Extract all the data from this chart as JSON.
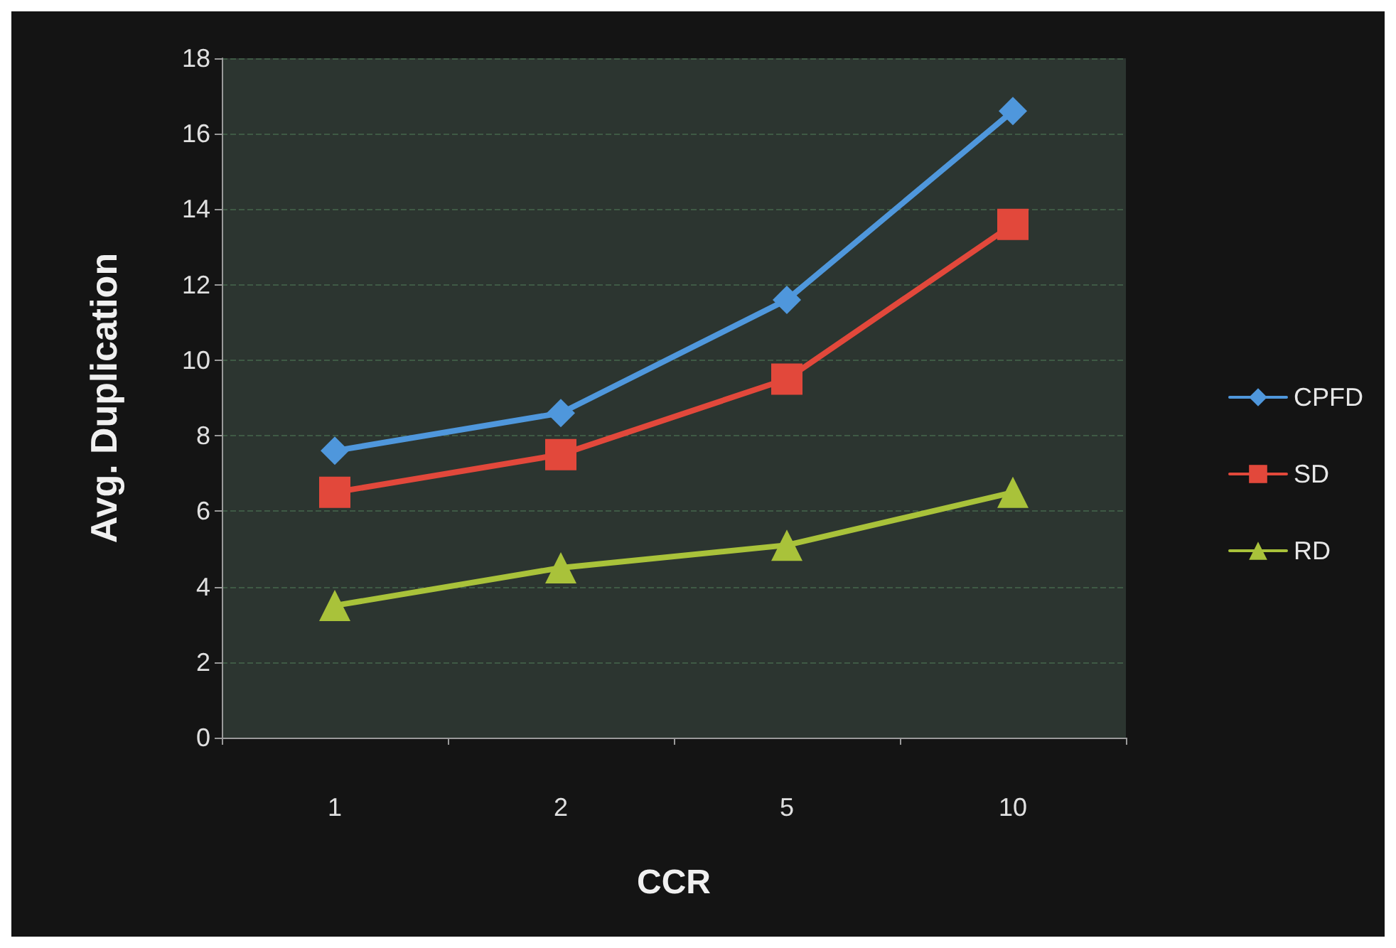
{
  "chart_data": {
    "type": "line",
    "xlabel": "CCR",
    "ylabel": "Avg. Duplication",
    "categories": [
      "1",
      "2",
      "5",
      "10"
    ],
    "series": [
      {
        "name": "CPFD",
        "color": "#4f97dc",
        "marker": "diamond",
        "values": [
          7.6,
          8.6,
          11.6,
          16.6
        ]
      },
      {
        "name": "SD",
        "color": "#e2483b",
        "marker": "square",
        "values": [
          6.5,
          7.5,
          9.5,
          13.6
        ]
      },
      {
        "name": "RD",
        "color": "#a9c23a",
        "marker": "triangle",
        "values": [
          3.5,
          4.5,
          5.1,
          6.5
        ]
      }
    ],
    "ylim": [
      0,
      18
    ],
    "yticks": [
      0,
      2,
      4,
      6,
      8,
      10,
      12,
      14,
      16,
      18
    ],
    "grid": "y",
    "legend": "right",
    "line_style": "solid"
  }
}
